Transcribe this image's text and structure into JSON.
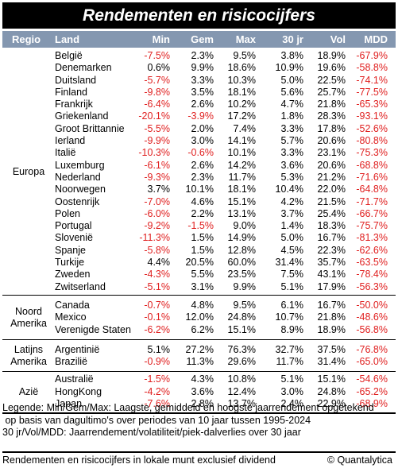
{
  "title": "Rendementen en risicocijfers",
  "headers": [
    "Regio",
    "Land",
    "Min",
    "Gem",
    "Max",
    "30 jr",
    "Vol",
    "MDD"
  ],
  "groups": [
    {
      "regio": [
        "Europa"
      ],
      "rows": [
        [
          "België",
          "-7.5%",
          "2.3%",
          "9.5%",
          "3.8%",
          "18.9%",
          "-67.9%"
        ],
        [
          "Denemarken",
          "0.6%",
          "9.9%",
          "18.6%",
          "10.9%",
          "19.6%",
          "-58.8%"
        ],
        [
          "Duitsland",
          "-5.7%",
          "3.3%",
          "10.3%",
          "5.0%",
          "22.5%",
          "-74.1%"
        ],
        [
          "Finland",
          "-9.8%",
          "3.5%",
          "18.1%",
          "5.6%",
          "25.7%",
          "-77.5%"
        ],
        [
          "Frankrijk",
          "-6.4%",
          "2.6%",
          "10.2%",
          "4.7%",
          "21.8%",
          "-65.3%"
        ],
        [
          "Griekenland",
          "-20.1%",
          "-3.9%",
          "17.2%",
          "1.8%",
          "28.3%",
          "-93.1%"
        ],
        [
          "Groot Brittannie",
          "-5.5%",
          "2.0%",
          "7.4%",
          "3.3%",
          "17.8%",
          "-52.6%"
        ],
        [
          "Ierland",
          "-9.9%",
          "3.0%",
          "14.1%",
          "5.7%",
          "20.6%",
          "-80.8%"
        ],
        [
          "Italië",
          "-10.3%",
          "-0.6%",
          "10.1%",
          "3.3%",
          "23.1%",
          "-75.3%"
        ],
        [
          "Luxemburg",
          "-6.1%",
          "2.6%",
          "14.2%",
          "3.6%",
          "20.6%",
          "-68.8%"
        ],
        [
          "Nederland",
          "-9.3%",
          "2.3%",
          "11.7%",
          "5.3%",
          "21.2%",
          "-71.6%"
        ],
        [
          "Noorwegen",
          "3.7%",
          "10.1%",
          "18.1%",
          "10.4%",
          "22.0%",
          "-64.8%"
        ],
        [
          "Oostenrijk",
          "-7.0%",
          "4.6%",
          "15.1%",
          "4.2%",
          "21.5%",
          "-71.7%"
        ],
        [
          "Polen",
          "-6.0%",
          "2.2%",
          "13.1%",
          "3.7%",
          "25.4%",
          "-66.7%"
        ],
        [
          "Portugal",
          "-9.2%",
          "-1.5%",
          "9.0%",
          "1.4%",
          "18.3%",
          "-75.7%"
        ],
        [
          "Slovenië",
          "-11.3%",
          "1.5%",
          "14.9%",
          "5.0%",
          "16.7%",
          "-81.3%"
        ],
        [
          "Spanje",
          "-5.8%",
          "1.5%",
          "12.8%",
          "4.5%",
          "22.3%",
          "-62.6%"
        ],
        [
          "Turkije",
          "4.4%",
          "20.5%",
          "60.0%",
          "31.4%",
          "35.7%",
          "-63.5%"
        ],
        [
          "Zweden",
          "-4.3%",
          "5.5%",
          "23.5%",
          "7.5%",
          "43.1%",
          "-78.4%"
        ],
        [
          "Zwitserland",
          "-5.1%",
          "3.1%",
          "9.9%",
          "5.1%",
          "17.9%",
          "-56.3%"
        ]
      ]
    },
    {
      "regio": [
        "Noord",
        "Amerika"
      ],
      "rows": [
        [
          "Canada",
          "-0.7%",
          "4.8%",
          "9.5%",
          "6.1%",
          "16.7%",
          "-50.0%"
        ],
        [
          "Mexico",
          "-0.1%",
          "12.0%",
          "24.8%",
          "10.7%",
          "21.8%",
          "-48.6%"
        ],
        [
          "Verenigde Staten",
          "-6.2%",
          "6.2%",
          "15.1%",
          "8.9%",
          "18.9%",
          "-56.8%"
        ]
      ]
    },
    {
      "regio": [
        "Latijns",
        "Amerika"
      ],
      "rows": [
        [
          "Argentinië",
          "5.1%",
          "27.2%",
          "76.3%",
          "32.7%",
          "37.5%",
          "-76.8%"
        ],
        [
          "Brazilië",
          "-0.9%",
          "11.3%",
          "29.6%",
          "11.7%",
          "31.4%",
          "-65.0%"
        ]
      ]
    },
    {
      "regio": [
        "Azië"
      ],
      "rows": [
        [
          "Australië",
          "-1.5%",
          "4.3%",
          "10.8%",
          "5.1%",
          "15.1%",
          "-54.6%"
        ],
        [
          "HongKong",
          "-4.2%",
          "3.6%",
          "12.4%",
          "3.0%",
          "24.8%",
          "-65.2%"
        ],
        [
          "Japan",
          "-7.6%",
          "2.8%",
          "13.7%",
          "2.4%",
          "22.9%",
          "-68.9%"
        ]
      ]
    }
  ],
  "legend": [
    "Legende: Min/Gem/Max: Laagste, gemiddeld en hoogste jaarrendement opgetekend",
    " op basis van dagultimo's over periodes van 10 jaar tussen 1995-2024",
    "30 jr/Vol/MDD: Jaarrendement/volatiliteit/piek-dalverlies over 30 jaar"
  ],
  "footer": {
    "note": "Rendementen en risicocijfers in lokale munt exclusief dividend",
    "source": "© Quantalytica"
  },
  "colors": {
    "title_bg": "#000000",
    "header_bg": "#8497b0",
    "negative": "#e02020"
  }
}
